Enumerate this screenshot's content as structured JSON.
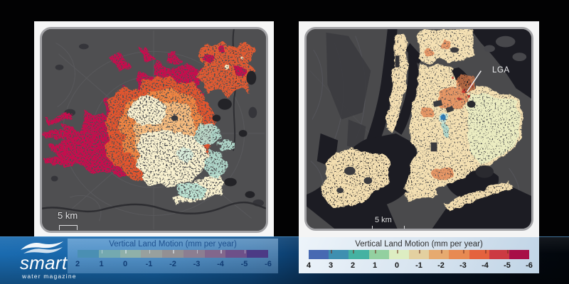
{
  "branding": {
    "name": "smart",
    "tagline": "water magazine",
    "strip_color_left": "#1a6bb0",
    "strip_color_right": "#03080f"
  },
  "left_panel": {
    "scale_label": "5 km",
    "legend": {
      "title": "Vertical Land Motion (mm per year)",
      "tick_labels": [
        "2",
        "1",
        "0",
        "-1",
        "-2",
        "-3",
        "-4",
        "-5",
        "-6"
      ],
      "segment_colors": [
        "#4a8fb3",
        "#74a9b0",
        "#8fb0a9",
        "#98a09e",
        "#939093",
        "#8c7e91",
        "#82678c",
        "#6e5089",
        "#4c3a85"
      ],
      "tick_color": "rgba(235,243,250,0.55)"
    }
  },
  "right_panel": {
    "annotation_label": "LGA",
    "scale_label": "5 km",
    "legend": {
      "title": "Vertical Land Motion (mm per year)",
      "tick_labels": [
        "4",
        "3",
        "2",
        "1",
        "0",
        "-1",
        "-2",
        "-3",
        "-4",
        "-5",
        "-6"
      ],
      "segment_colors": [
        "#4769b2",
        "#3f8fb0",
        "#45b2a2",
        "#93d0a0",
        "#ddedc2",
        "#e3d0a0",
        "#e6aa70",
        "#e88a52",
        "#e4623e",
        "#cc3a42",
        "#a80e47"
      ],
      "tick_color": "rgba(110,45,30,0.55)"
    }
  },
  "chart_data": [
    {
      "type": "heatmap",
      "title": "Vertical Land Motion (mm per year)",
      "units": "mm per year",
      "legend_position": "bottom",
      "colorbar_ticks": [
        2,
        1,
        0,
        -1,
        -2,
        -3,
        -4,
        -5,
        -6
      ],
      "colorbar_colors": [
        "#4a8fb3",
        "#74a9b0",
        "#8fb0a9",
        "#98a09e",
        "#939093",
        "#8c7e91",
        "#82678c",
        "#6e5089",
        "#4c3a85"
      ],
      "scale_bar": "5 km"
    },
    {
      "type": "heatmap",
      "title": "Vertical Land Motion (mm per year)",
      "units": "mm per year",
      "legend_position": "bottom",
      "colorbar_ticks": [
        4,
        3,
        2,
        1,
        0,
        -1,
        -2,
        -3,
        -4,
        -5,
        -6
      ],
      "colorbar_colors": [
        "#4769b2",
        "#3f8fb0",
        "#45b2a2",
        "#93d0a0",
        "#ddedc2",
        "#e3d0a0",
        "#e6aa70",
        "#e88a52",
        "#e4623e",
        "#cc3a42",
        "#a80e47"
      ],
      "scale_bar": "5 km",
      "annotations": [
        "LGA"
      ]
    }
  ]
}
